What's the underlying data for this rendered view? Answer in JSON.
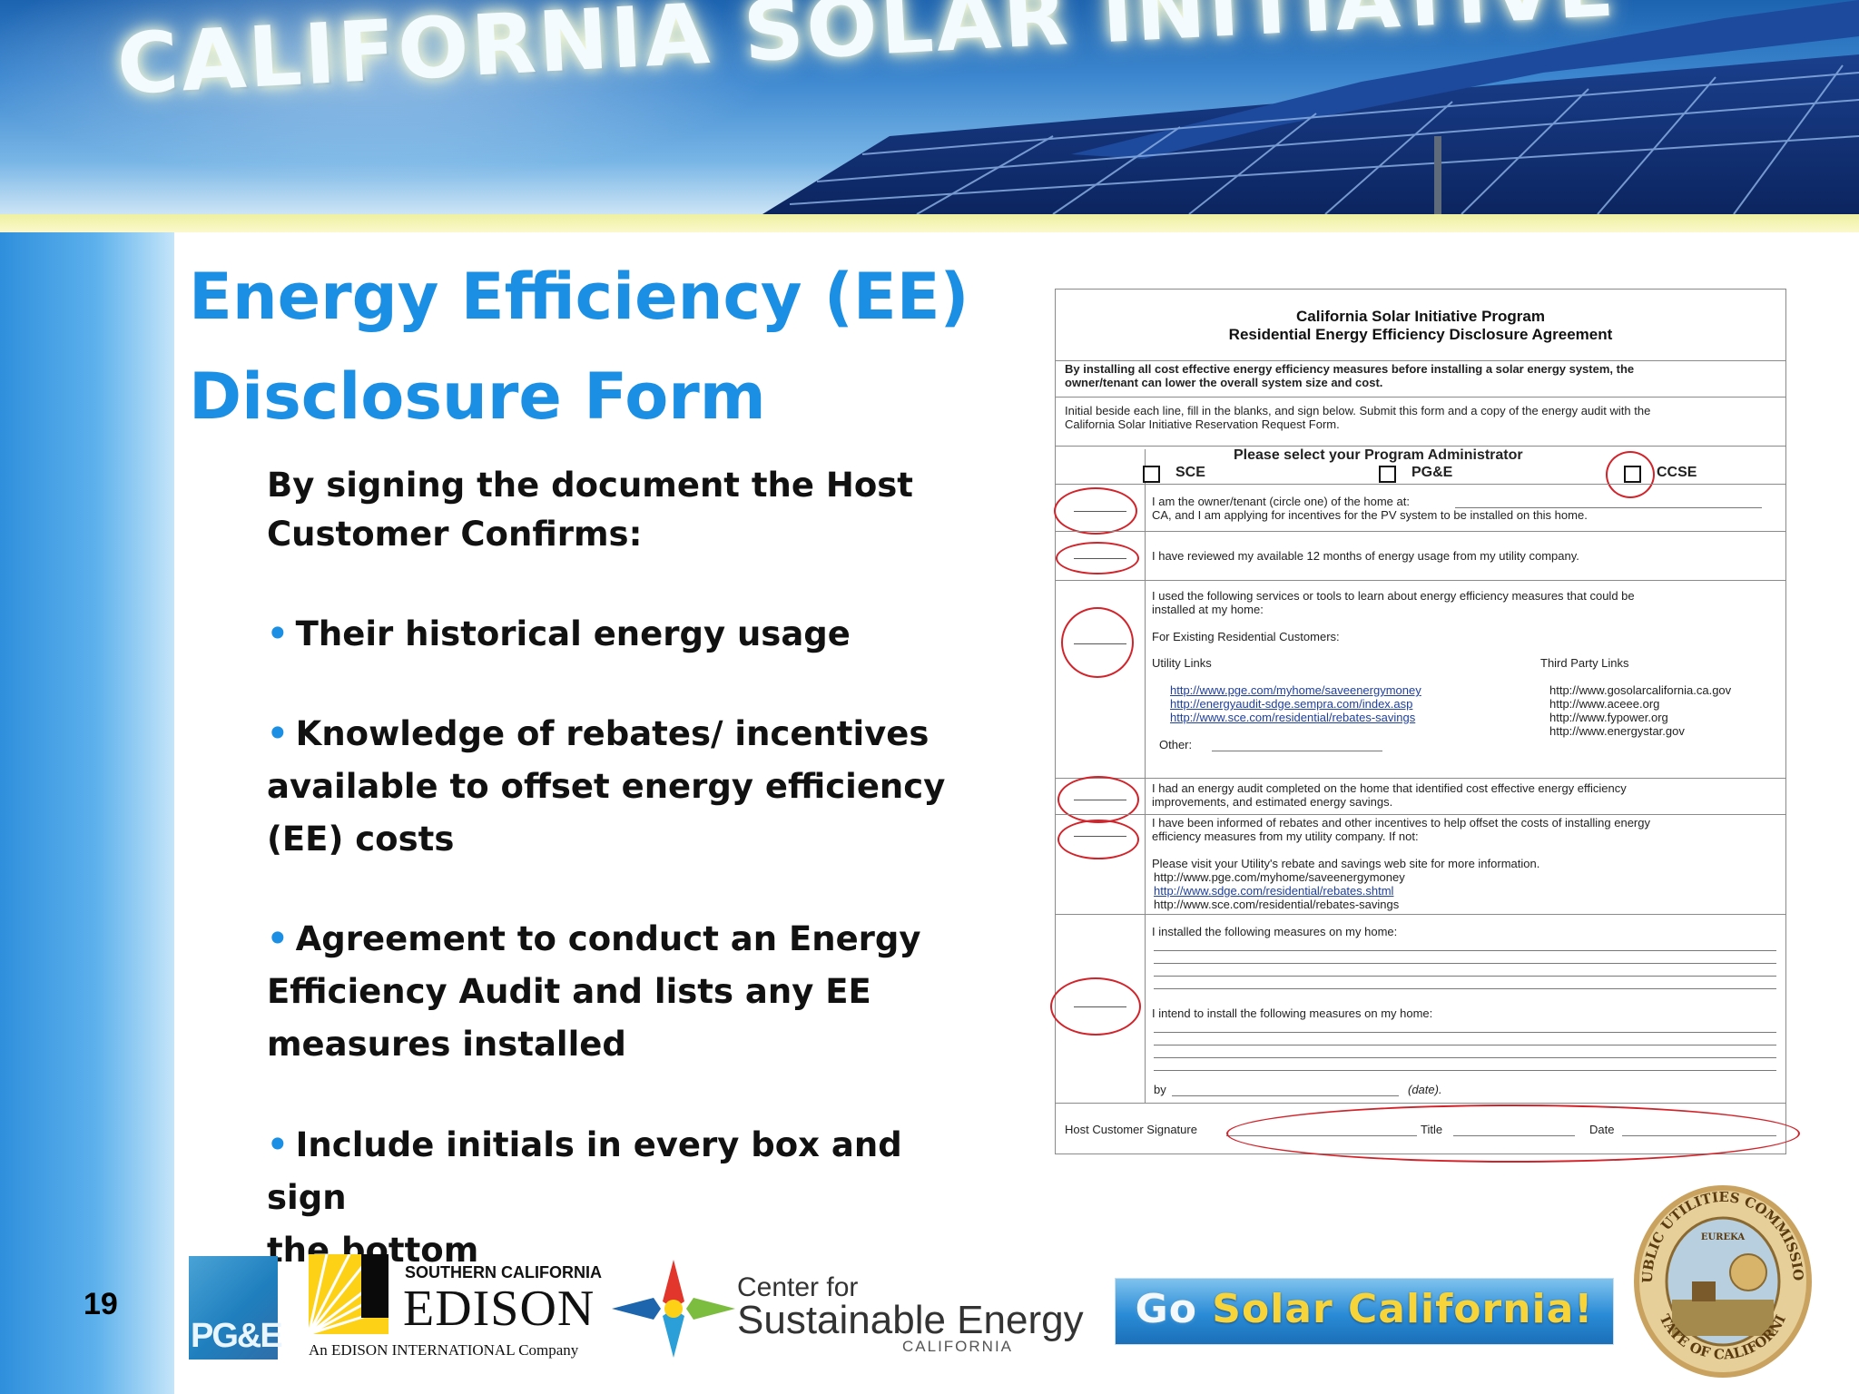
{
  "banner": {
    "title": "CALIFORNIA SOLAR INITIATIVE"
  },
  "slide": {
    "title_line1": "Energy Efficiency (EE)",
    "title_line2": "Disclosure Form",
    "intro_line1": "By signing the document the Host",
    "intro_line2": "Customer Confirms:",
    "bullets": [
      [
        "Their historical energy usage"
      ],
      [
        "Knowledge of rebates/ incentives",
        "available to offset energy efficiency",
        "(EE) costs"
      ],
      [
        "Agreement to conduct an Energy",
        "Efficiency Audit and lists any EE",
        "measures installed"
      ],
      [
        "Include initials in every box and sign",
        "the bottom"
      ]
    ],
    "bullet_symbol": "•",
    "page_number": "19"
  },
  "form": {
    "title1": "California Solar Initiative Program",
    "title2": "Residential Energy Efficiency Disclosure Agreement",
    "intro_bold1": "By installing all cost effective energy efficiency measures before installing a solar energy system, the",
    "intro_bold2": "owner/tenant can lower the overall system size and cost.",
    "instr1": "Initial beside each line, fill in the blanks, and sign below.  Submit this form and a copy of the energy audit with the",
    "instr2": "California Solar Initiative Reservation Request Form.",
    "admin_heading": "Please select your Program Administrator",
    "admins": [
      "SCE",
      "PG&E",
      "CCSE"
    ],
    "owner1": "I am the owner/tenant (circle one) of the home at:",
    "owner2": "CA, and I am applying for incentives for the PV system to be installed on this home.",
    "reviewed": "I have reviewed my available 12 months of energy usage from my utility company.",
    "used1": "I used the following services or tools to learn about energy efficiency measures that could be",
    "used2": "installed at my home:",
    "existing": "For Existing Residential Customers:",
    "utility_links_heading": "Utility Links",
    "third_party_heading": "Third Party Links",
    "utility_links": [
      "http://www.pge.com/myhome/saveenergymoney",
      "http://energyaudit-sdge.sempra.com/index.asp",
      "http://www.sce.com/residential/rebates-savings"
    ],
    "third_links": [
      "http://www.gosolarcalifornia.ca.gov",
      "http://www.aceee.org",
      "http://www.fypower.org",
      "http://www.energystar.gov"
    ],
    "other": "Other:",
    "audit1": "I had an energy audit completed on the home that identified cost effective energy efficiency",
    "audit2": "improvements, and estimated energy savings.",
    "informed1": "I have been informed of rebates and other incentives to help offset the costs of installing energy",
    "informed2": "efficiency measures from my utility company. If not:",
    "visit": "Please visit your Utility's rebate and savings web site for more information.",
    "visit_links": [
      "http://www.pge.com/myhome/saveenergymoney",
      "http://www.sdge.com/residential/rebates.shtml",
      "http://www.sce.com/residential/rebates-savings"
    ],
    "installed": "I installed the following measures on my home:",
    "intend": "I intend to install the following measures on my home:",
    "by": "by",
    "date_paren": "(date).",
    "signature": "Host Customer Signature",
    "title_label": "Title",
    "date_label": "Date"
  },
  "logos": {
    "pge": "PG&E",
    "sce_top": "SOUTHERN CALIFORNIA",
    "sce_main": "EDISON",
    "sce_sub": "An EDISON INTERNATIONAL Company",
    "cse_l1": "Center for",
    "cse_l2": "Sustainable Energy",
    "cse_l3": "CALIFORNIA",
    "gosolar_go": "Go",
    "gosolar_rest": "Solar California!",
    "seal_text_top": "PUBLIC UTILITIES COMMISSION",
    "seal_text_bottom": "STATE OF CALIFORNIA",
    "seal_motto": "EUREKA"
  },
  "colors": {
    "title_blue": "#1a8fe3",
    "annotation_red": "#d2232a",
    "banner_blue": "#2b7bc9",
    "strip_yellow": "#f5f4b8"
  }
}
